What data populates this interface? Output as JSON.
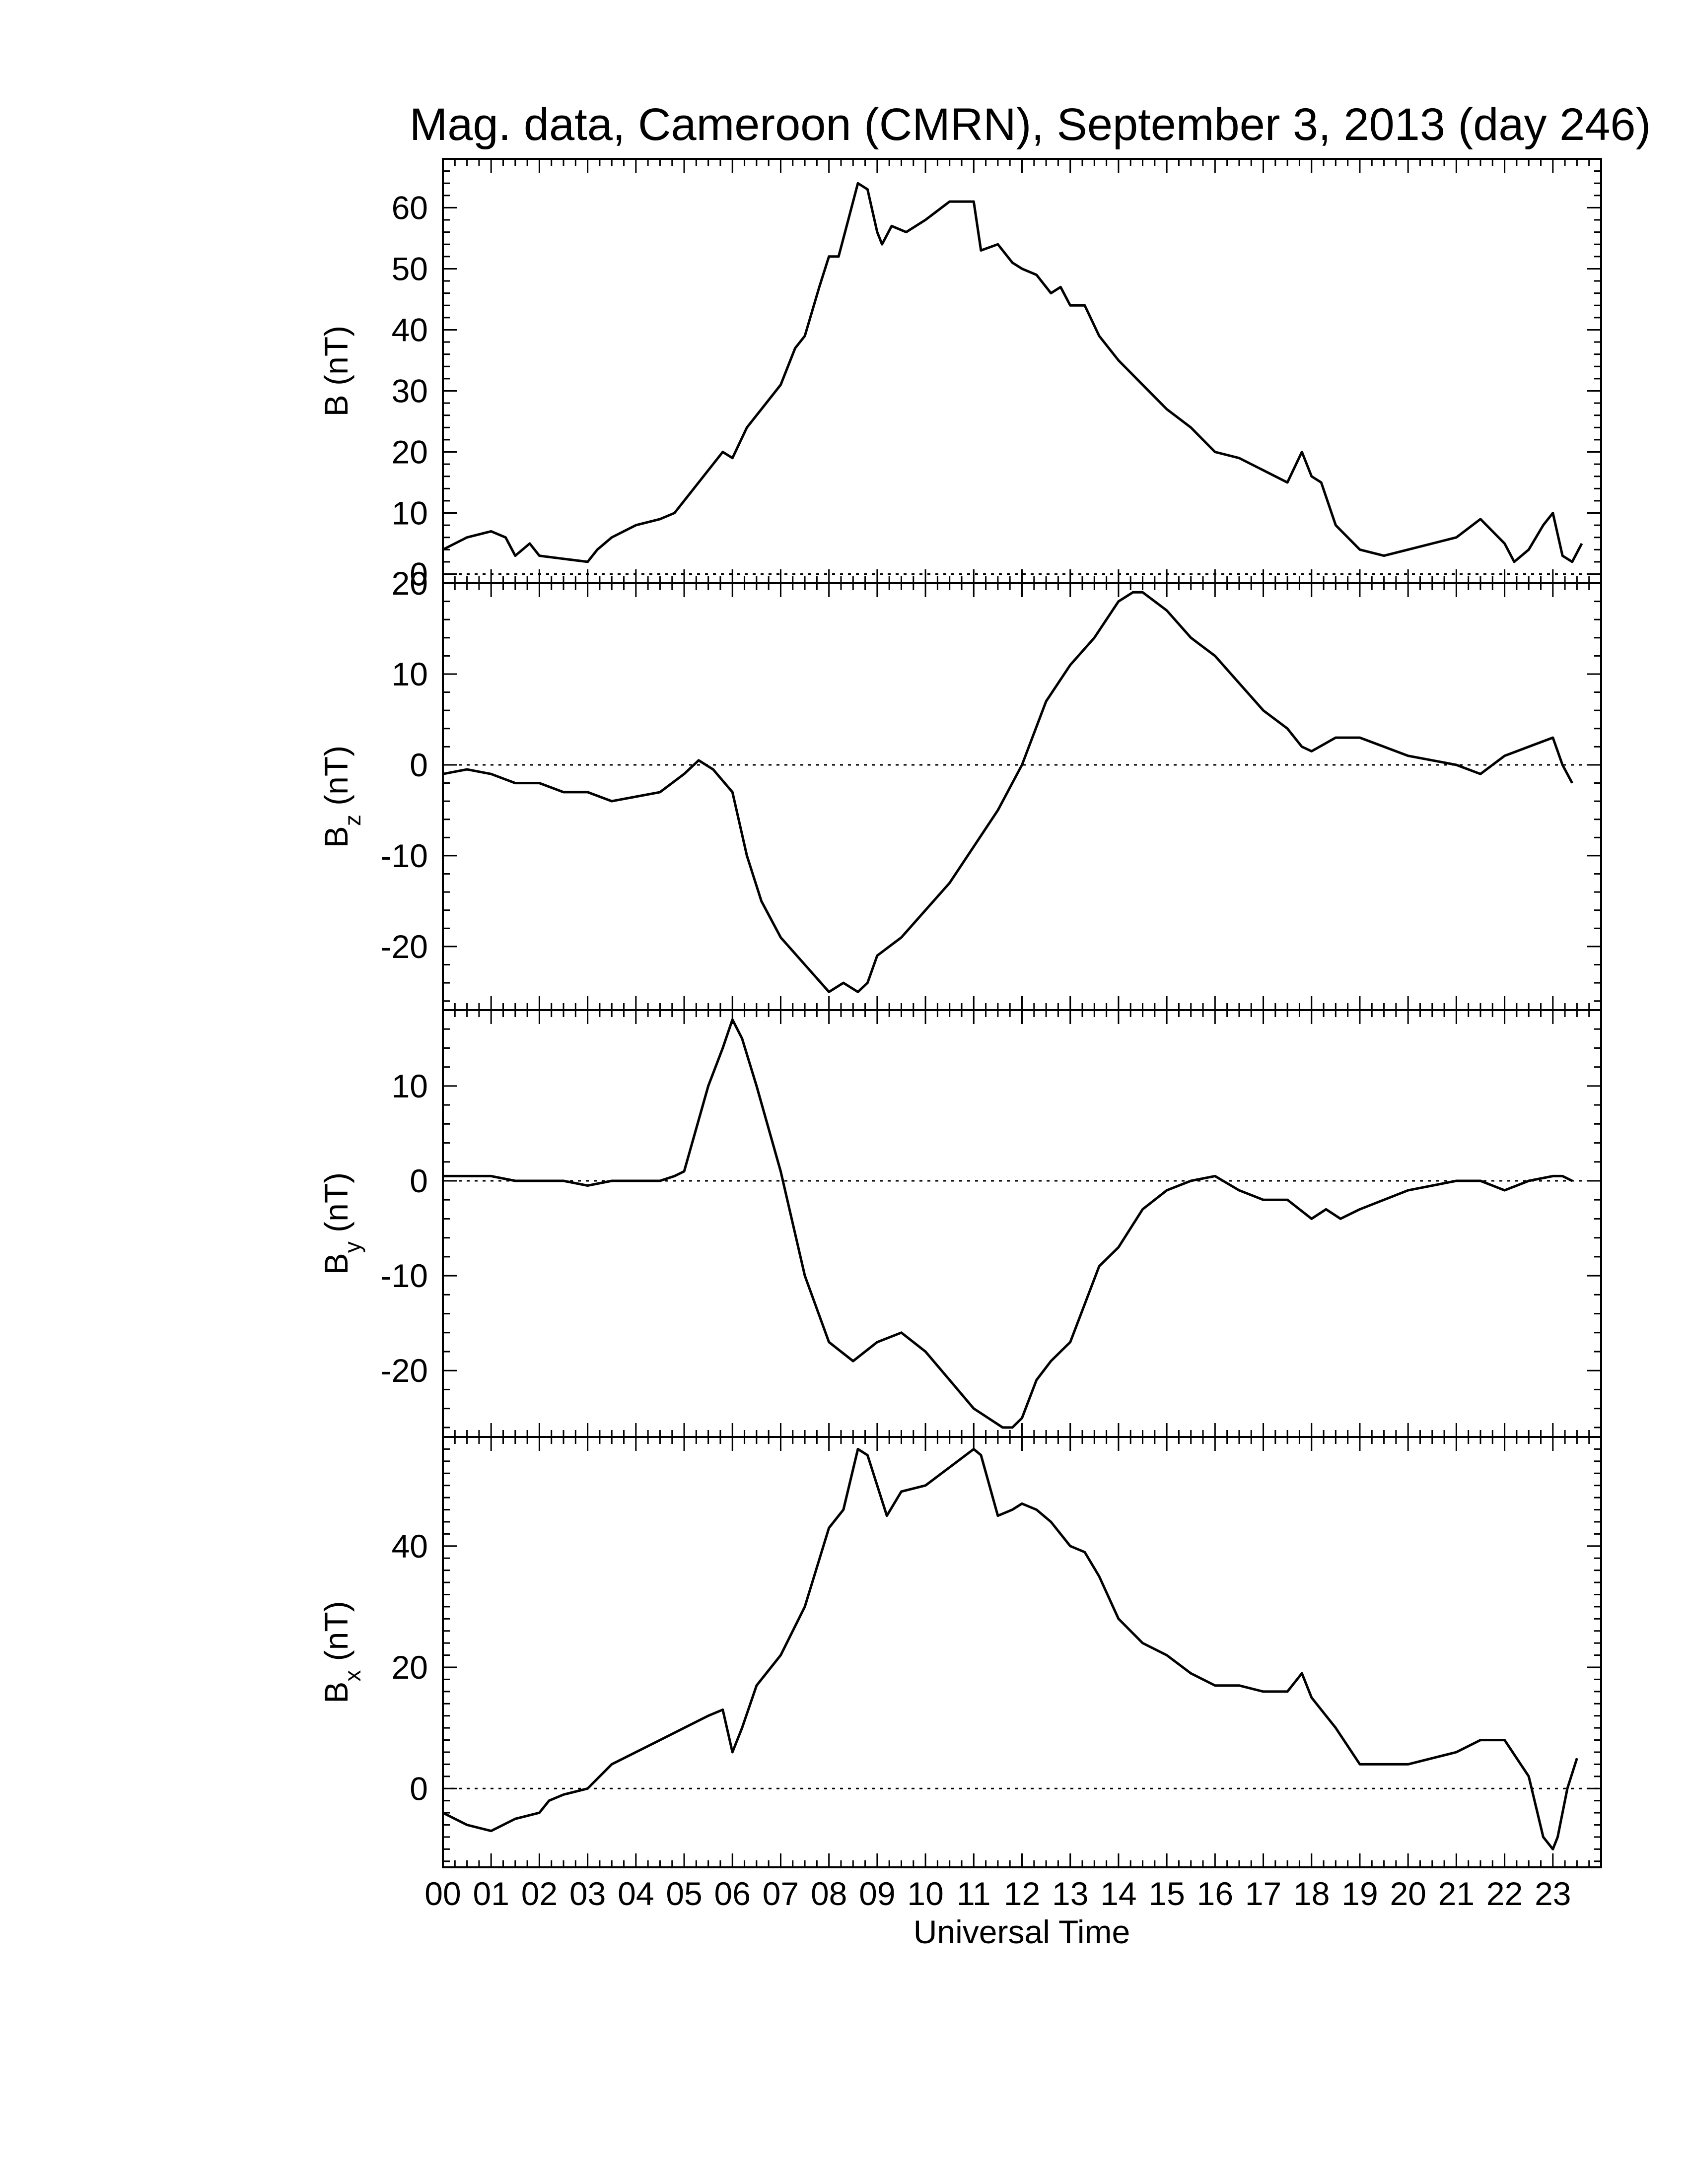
{
  "title": "Mag. data, Cameroon (CMRN), September 3, 2013 (day 246)",
  "chart_data": {
    "type": "line",
    "title": "Mag. data, Cameroon (CMRN), September 3, 2013 (day 246)",
    "xlabel": "Universal Time",
    "xlim": [
      0,
      24
    ],
    "x_ticklabels": [
      "00",
      "01",
      "02",
      "03",
      "04",
      "05",
      "06",
      "07",
      "08",
      "09",
      "10",
      "11",
      "12",
      "13",
      "14",
      "15",
      "16",
      "17",
      "18",
      "19",
      "20",
      "21",
      "22",
      "23"
    ],
    "grid": false,
    "panels": [
      {
        "ylabel": "B (nT)",
        "ylabel_main": "B",
        "ylabel_sub": "",
        "ylabel_unit": " (nT)",
        "ylim": [
          -1.5,
          68
        ],
        "yticks": [
          0,
          10,
          20,
          30,
          40,
          50,
          60
        ],
        "zero_line": true,
        "x": [
          0,
          0.5,
          1,
          1.3,
          1.5,
          1.8,
          2,
          2.5,
          3,
          3.2,
          3.5,
          4,
          4.5,
          4.8,
          5,
          5.3,
          5.8,
          6,
          6.3,
          6.6,
          7,
          7.3,
          7.5,
          7.8,
          8,
          8.2,
          8.4,
          8.6,
          8.8,
          9,
          9.1,
          9.3,
          9.6,
          10,
          10.5,
          11,
          11.15,
          11.5,
          11.8,
          12,
          12.3,
          12.6,
          12.8,
          13,
          13.3,
          13.6,
          14,
          14.5,
          15,
          15.5,
          16,
          16.5,
          17,
          17.5,
          17.8,
          18,
          18.2,
          18.5,
          19,
          19.5,
          20,
          20.5,
          21,
          21.5,
          22,
          22.2,
          22.5,
          22.8,
          23,
          23.2,
          23.4,
          23.6
        ],
        "y": [
          4,
          6,
          7,
          6,
          3,
          5,
          3,
          2.5,
          2,
          4,
          6,
          8,
          9,
          10,
          12,
          15,
          20,
          19,
          24,
          27,
          31,
          37,
          39,
          47,
          52,
          52,
          58,
          64,
          63,
          56,
          54,
          57,
          56,
          58,
          61,
          61,
          53,
          54,
          51,
          50,
          49,
          46,
          47,
          44,
          44,
          39,
          35,
          31,
          27,
          24,
          20,
          19,
          17,
          15,
          20,
          16,
          15,
          8,
          4,
          3,
          4,
          5,
          6,
          9,
          5,
          2,
          4,
          8,
          10,
          3,
          2,
          5
        ]
      },
      {
        "ylabel": "Bz (nT)",
        "ylabel_main": "B",
        "ylabel_sub": "z",
        "ylabel_unit": " (nT)",
        "ylim": [
          -27,
          20
        ],
        "yticks": [
          -20,
          -10,
          0,
          10,
          20
        ],
        "zero_line": true,
        "x": [
          0,
          0.5,
          1,
          1.5,
          2,
          2.5,
          3,
          3.5,
          4,
          4.5,
          5,
          5.3,
          5.6,
          6,
          6.3,
          6.6,
          7,
          7.5,
          8,
          8.3,
          8.6,
          8.8,
          9,
          9.5,
          10,
          10.5,
          11,
          11.5,
          12,
          12.5,
          13,
          13.5,
          14,
          14.3,
          14.5,
          15,
          15.5,
          16,
          16.5,
          17,
          17.5,
          17.8,
          18,
          18.5,
          19,
          19.5,
          20,
          20.5,
          21,
          21.5,
          22,
          22.5,
          23,
          23.2,
          23.4
        ],
        "y": [
          -1,
          -0.5,
          -1,
          -2,
          -2,
          -3,
          -3,
          -4,
          -3.5,
          -3,
          -1,
          0.5,
          -0.5,
          -3,
          -10,
          -15,
          -19,
          -22,
          -25,
          -24,
          -25,
          -24,
          -21,
          -19,
          -16,
          -13,
          -9,
          -5,
          0,
          7,
          11,
          14,
          18,
          19,
          19,
          17,
          14,
          12,
          9,
          6,
          4,
          2,
          1.5,
          3,
          3,
          2,
          1,
          0.5,
          0,
          -1,
          1,
          2,
          3,
          0,
          -2
        ]
      },
      {
        "ylabel": "By (nT)",
        "ylabel_main": "B",
        "ylabel_sub": "y",
        "ylabel_unit": " (nT)",
        "ylim": [
          -27,
          18
        ],
        "yticks": [
          -20,
          -10,
          0,
          10
        ],
        "zero_line": true,
        "x": [
          0,
          0.5,
          1,
          1.5,
          2,
          2.5,
          3,
          3.5,
          4,
          4.5,
          4.8,
          5,
          5.5,
          5.8,
          6,
          6.2,
          6.5,
          7,
          7.5,
          8,
          8.5,
          9,
          9.5,
          10,
          10.5,
          11,
          11.3,
          11.6,
          11.8,
          12,
          12.3,
          12.6,
          13,
          13.3,
          13.6,
          14,
          14.5,
          15,
          15.5,
          16,
          16.5,
          17,
          17.5,
          18,
          18.3,
          18.6,
          19,
          19.5,
          20,
          20.5,
          21,
          21.5,
          22,
          22.5,
          23,
          23.2,
          23.4
        ],
        "y": [
          0.5,
          0.5,
          0.5,
          0,
          0,
          0,
          -0.5,
          0,
          0,
          0,
          0.5,
          1,
          10,
          14,
          17,
          15,
          10,
          1,
          -10,
          -17,
          -19,
          -17,
          -16,
          -18,
          -21,
          -24,
          -25,
          -26,
          -26,
          -25,
          -21,
          -19,
          -17,
          -13,
          -9,
          -7,
          -3,
          -1,
          0,
          0.5,
          -1,
          -2,
          -2,
          -4,
          -3,
          -4,
          -3,
          -2,
          -1,
          -0.5,
          0,
          0,
          -1,
          0,
          0.5,
          0.5,
          0
        ]
      },
      {
        "ylabel": "Bx (nT)",
        "ylabel_main": "B",
        "ylabel_sub": "x",
        "ylabel_unit": " (nT)",
        "ylim": [
          -13,
          58
        ],
        "yticks": [
          0,
          20,
          40
        ],
        "zero_line": true,
        "x": [
          0,
          0.5,
          1,
          1.5,
          2,
          2.2,
          2.5,
          3,
          3.5,
          4,
          4.5,
          5,
          5.5,
          5.8,
          6,
          6.2,
          6.5,
          7,
          7.5,
          8,
          8.3,
          8.6,
          8.8,
          9,
          9.2,
          9.5,
          10,
          10.5,
          11,
          11.15,
          11.5,
          11.8,
          12,
          12.3,
          12.6,
          12.8,
          13,
          13.3,
          13.6,
          14,
          14.5,
          15,
          15.5,
          16,
          16.5,
          17,
          17.5,
          17.8,
          18,
          18.5,
          19,
          19.5,
          20,
          20.5,
          21,
          21.5,
          22,
          22.5,
          22.8,
          23,
          23.1,
          23.3,
          23.5
        ],
        "y": [
          -4,
          -6,
          -7,
          -5,
          -4,
          -2,
          -1,
          0,
          4,
          6,
          8,
          10,
          12,
          13,
          6,
          10,
          17,
          22,
          30,
          43,
          46,
          56,
          55,
          50,
          45,
          49,
          50,
          53,
          56,
          55,
          45,
          46,
          47,
          46,
          44,
          42,
          40,
          39,
          35,
          28,
          24,
          22,
          19,
          17,
          17,
          16,
          16,
          19,
          15,
          10,
          4,
          4,
          4,
          5,
          6,
          8,
          8,
          2,
          -8,
          -10,
          -8,
          0,
          5
        ]
      }
    ]
  }
}
